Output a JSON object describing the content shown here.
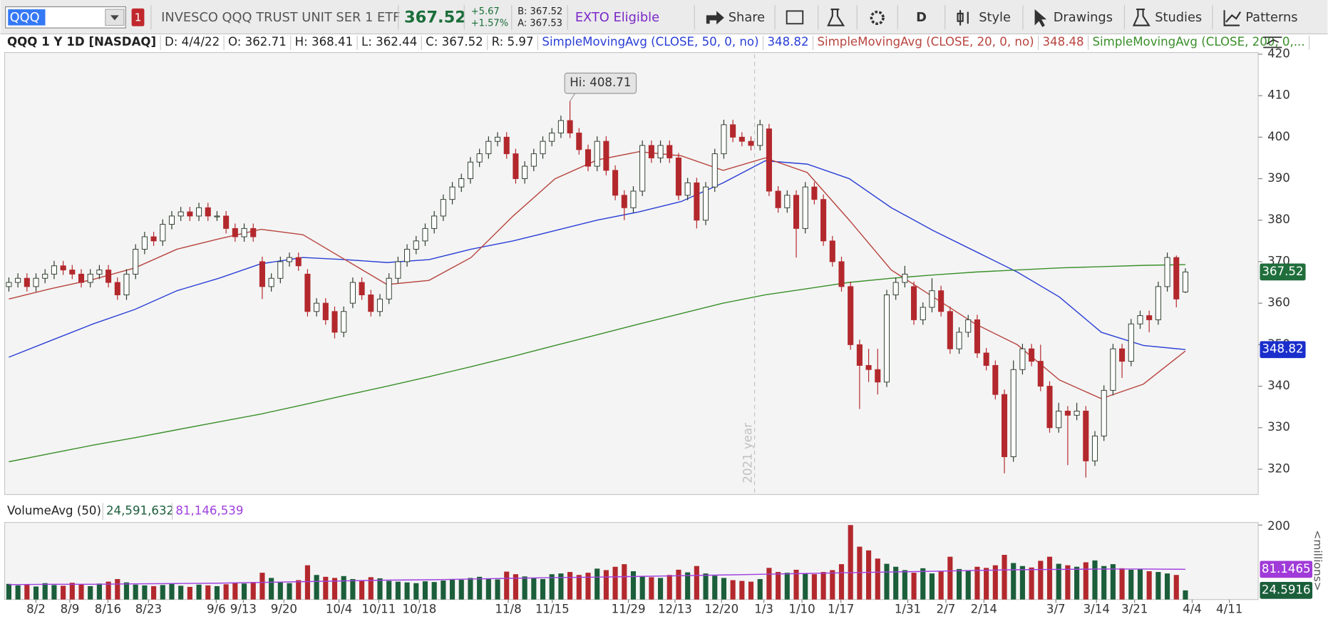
{
  "toolbar": {
    "symbol": "QQQ",
    "alert_count": "1",
    "description": "INVESCO QQQ TRUST UNIT SER 1 ETF",
    "last": "367.52",
    "change": "+5.67",
    "change_pct": "+1.57%",
    "bid": "B: 367.52",
    "ask": "A: 367.53",
    "badge": "EXTO Eligible",
    "buttons": [
      "Share",
      "D",
      "Style",
      "Drawings",
      "Studies",
      "Patterns"
    ]
  },
  "info_bar": {
    "symbol": "QQQ 1 Y 1D [NASDAQ]",
    "date": "D: 4/4/22",
    "open": "O: 362.71",
    "high": "H: 368.41",
    "low": "L: 362.44",
    "close": "C: 367.52",
    "range": "R: 5.97",
    "studies": [
      {
        "name": "SimpleMovingAvg (CLOSE, 50, 0, no)",
        "value": "348.82",
        "color": "#2a3fd6"
      },
      {
        "name": "SimpleMovingAvg (CLOSE, 20, 0, no)",
        "value": "348.48",
        "color": "#b8453f"
      },
      {
        "name": "SimpleMovingAvg (CLOSE, 200, 0,...",
        "color": "#3a8f2a"
      }
    ]
  },
  "price_chart": {
    "ylim": [
      313.9,
      420.4
    ],
    "yticks": [
      320,
      330,
      340,
      350,
      360,
      370,
      380,
      390,
      400,
      410,
      420
    ],
    "up_color": "#ffffff",
    "down_color": "#b3282d",
    "candles": [
      [
        364,
        366.2,
        362.8,
        365
      ],
      [
        365,
        367.2,
        363.8,
        366
      ],
      [
        366,
        367.2,
        362.8,
        364
      ],
      [
        364,
        367.2,
        362.8,
        366
      ],
      [
        366,
        368.2,
        364.8,
        367
      ],
      [
        367,
        370.2,
        365.8,
        369
      ],
      [
        369,
        370.2,
        366.8,
        368
      ],
      [
        368,
        369.2,
        365.8,
        367
      ],
      [
        367,
        368.2,
        363.8,
        365
      ],
      [
        365,
        368.2,
        363.8,
        367
      ],
      [
        367,
        369.2,
        365.8,
        368
      ],
      [
        368,
        369.2,
        363.8,
        365
      ],
      [
        365,
        366.2,
        360.8,
        362
      ],
      [
        362,
        368.2,
        360.8,
        367
      ],
      [
        367,
        374.2,
        365.8,
        373
      ],
      [
        373,
        377.2,
        371.8,
        376
      ],
      [
        376,
        377.2,
        373.8,
        375
      ],
      [
        375,
        380.2,
        373.8,
        379
      ],
      [
        379,
        382.2,
        377.8,
        381
      ],
      [
        381,
        383.2,
        379.8,
        382
      ],
      [
        382,
        383.2,
        379.8,
        381
      ],
      [
        381,
        384.2,
        379.8,
        383
      ],
      [
        383,
        384.2,
        379.8,
        381
      ],
      [
        381,
        382.2,
        379.8,
        381
      ],
      [
        381,
        382.2,
        376.8,
        378
      ],
      [
        378,
        379.2,
        374.8,
        376
      ],
      [
        376,
        379.2,
        374.8,
        378
      ],
      [
        378,
        379.2,
        374.8,
        376
      ],
      [
        370,
        371.2,
        361,
        364
      ],
      [
        364,
        367.2,
        362.8,
        366
      ],
      [
        366,
        371.2,
        364.8,
        370
      ],
      [
        370,
        372.2,
        368.8,
        371
      ],
      [
        371,
        372.2,
        367.8,
        369
      ],
      [
        367,
        368.2,
        356.8,
        358
      ],
      [
        358,
        361.2,
        356.8,
        360
      ],
      [
        360,
        361.2,
        354.8,
        356
      ],
      [
        358,
        359.2,
        351.5,
        353
      ],
      [
        353,
        359.2,
        351.8,
        358
      ],
      [
        360,
        366.2,
        358.8,
        365
      ],
      [
        365,
        366.2,
        360.8,
        362
      ],
      [
        362,
        363.2,
        356.8,
        358
      ],
      [
        358,
        362.2,
        356.8,
        361
      ],
      [
        361,
        367.2,
        359.8,
        366
      ],
      [
        366,
        371.2,
        364.8,
        370
      ],
      [
        370,
        374.2,
        368.8,
        373
      ],
      [
        373,
        376.2,
        371.8,
        375
      ],
      [
        375,
        379.2,
        373.8,
        378
      ],
      [
        378,
        382.2,
        376.8,
        381
      ],
      [
        381,
        386.2,
        379.8,
        385
      ],
      [
        385,
        389.2,
        383.8,
        388
      ],
      [
        388,
        391.2,
        386.8,
        390
      ],
      [
        390,
        395.2,
        388.8,
        394
      ],
      [
        394,
        397.2,
        392.8,
        396
      ],
      [
        396,
        400.2,
        394.8,
        399
      ],
      [
        399,
        401.2,
        397.8,
        400
      ],
      [
        400,
        401.2,
        394.8,
        396
      ],
      [
        396,
        397.2,
        388.8,
        390
      ],
      [
        390,
        394.2,
        388.8,
        393
      ],
      [
        393,
        397.2,
        391.8,
        396
      ],
      [
        396,
        400.2,
        394.8,
        399
      ],
      [
        399,
        402.2,
        397.8,
        401
      ],
      [
        401,
        405.2,
        399.8,
        404
      ],
      [
        404,
        408.71,
        399.8,
        401
      ],
      [
        401,
        402.2,
        395.8,
        397
      ],
      [
        397,
        398.2,
        391.8,
        393
      ],
      [
        393,
        400.2,
        391.8,
        399
      ],
      [
        399,
        400.2,
        390.8,
        392
      ],
      [
        392,
        393.2,
        384.8,
        386
      ],
      [
        386,
        387.2,
        380,
        383
      ],
      [
        383,
        388.2,
        381.8,
        387
      ],
      [
        387,
        399.2,
        385.8,
        398
      ],
      [
        398,
        399.2,
        393.8,
        395
      ],
      [
        395,
        399.2,
        393.8,
        398
      ],
      [
        398,
        399.2,
        393.8,
        395
      ],
      [
        395,
        396.2,
        384.8,
        386
      ],
      [
        386,
        390.2,
        384.8,
        389
      ],
      [
        389,
        390.2,
        378,
        380
      ],
      [
        380,
        389.2,
        378.8,
        388
      ],
      [
        388,
        397.2,
        386.8,
        396
      ],
      [
        396,
        404.2,
        394.8,
        403
      ],
      [
        403,
        404.2,
        398.8,
        400
      ],
      [
        400,
        401.2,
        397.8,
        399
      ],
      [
        399,
        400.2,
        396.8,
        398
      ],
      [
        398,
        404.2,
        396.8,
        403
      ],
      [
        402,
        403.2,
        385.8,
        387
      ],
      [
        387,
        388.2,
        381.8,
        383
      ],
      [
        383,
        387.2,
        381.8,
        386
      ],
      [
        386,
        387.2,
        371,
        378
      ],
      [
        378,
        389.2,
        376.8,
        388
      ],
      [
        388,
        389.2,
        383.8,
        385
      ],
      [
        385,
        386.2,
        373.8,
        375
      ],
      [
        375,
        376.2,
        368.8,
        370
      ],
      [
        370,
        371.2,
        362.8,
        364
      ],
      [
        364,
        365.2,
        348.8,
        350
      ],
      [
        350,
        351.2,
        334.5,
        345
      ],
      [
        345,
        349,
        341,
        344
      ],
      [
        344,
        349,
        338,
        341
      ],
      [
        341,
        363.2,
        339.8,
        362
      ],
      [
        362,
        366.2,
        360.8,
        365
      ],
      [
        365,
        369,
        363.8,
        367
      ],
      [
        364,
        365.2,
        354.8,
        356
      ],
      [
        356,
        360.2,
        354.8,
        359
      ],
      [
        359,
        366,
        357.8,
        363
      ],
      [
        363,
        364.2,
        356.8,
        358
      ],
      [
        358,
        359.2,
        347.8,
        349
      ],
      [
        349,
        354.2,
        347.8,
        353
      ],
      [
        353,
        357.2,
        351.8,
        356
      ],
      [
        356,
        357.2,
        346.8,
        348
      ],
      [
        348,
        349.2,
        343.8,
        345
      ],
      [
        345,
        346.2,
        336.8,
        338
      ],
      [
        338,
        339.2,
        319,
        323
      ],
      [
        323,
        346.2,
        321.8,
        344
      ],
      [
        344,
        350.2,
        342.8,
        349
      ],
      [
        349,
        350.2,
        344.8,
        346
      ],
      [
        346,
        350,
        338.8,
        340
      ],
      [
        340,
        341.2,
        328.8,
        330
      ],
      [
        330,
        336,
        328.8,
        334
      ],
      [
        334,
        335.2,
        321,
        333
      ],
      [
        333,
        336,
        331.8,
        334
      ],
      [
        334,
        335.2,
        318,
        322
      ],
      [
        322,
        329.2,
        320.8,
        328
      ],
      [
        328,
        340.2,
        326.8,
        339
      ],
      [
        339,
        350.2,
        337.8,
        349
      ],
      [
        349,
        350.2,
        342,
        346
      ],
      [
        346,
        356.2,
        344.8,
        355
      ],
      [
        355,
        358.2,
        353.8,
        357
      ],
      [
        357,
        358.2,
        353,
        356
      ],
      [
        356,
        365.2,
        354.8,
        364
      ],
      [
        364,
        372.2,
        362.8,
        371
      ],
      [
        371,
        371.5,
        359,
        361
      ],
      [
        362.71,
        368.41,
        362.44,
        367.52
      ]
    ],
    "averages": [
      {
        "values": [
          347,
          351,
          355,
          358.5,
          363,
          366,
          369.5,
          371,
          370.5,
          369.8,
          370.5,
          373,
          375,
          377.5,
          380,
          382,
          384.5,
          389,
          394.3,
          393.5,
          390,
          383,
          377.5,
          372.5,
          367.5,
          361.5,
          353,
          349.8,
          348.82
        ]
      },
      {
        "values": [
          361,
          363.5,
          365.7,
          368.5,
          373,
          375.5,
          377.8,
          376.5,
          370.5,
          364.5,
          365.5,
          371,
          381,
          390,
          394.5,
          396.5,
          395.5,
          392,
          395,
          391.5,
          380,
          368,
          361.5,
          355,
          350,
          341.5,
          337,
          340.5,
          348.48
        ]
      },
      {
        "values": [
          321.8,
          323.8,
          325.8,
          327.6,
          329.5,
          331.4,
          333.3,
          335.5,
          337.8,
          340,
          342.3,
          344.7,
          347.2,
          349.8,
          352.4,
          355,
          357.5,
          360,
          362,
          363.5,
          365,
          366,
          366.8,
          367.5,
          368,
          368.5,
          368.8,
          369.1,
          369.3
        ]
      }
    ],
    "badges": [
      {
        "value": 367.52,
        "label": "367.52",
        "color": "#1f6e3b"
      },
      {
        "value": 348.82,
        "label": "348.82",
        "color": "#1a2ecc"
      }
    ],
    "high_callout": "Hi: 408.71",
    "year_label": "2021 year"
  },
  "volume_chart": {
    "study": "VolumeAvg (50)",
    "volume": "24,591,632",
    "average": "81,146,539",
    "average_color": "#a040e0",
    "ylim": [
      0,
      207
    ],
    "yticks": [
      200
    ],
    "unit_label": "<millions>",
    "up_color": "#1b5e3a",
    "down_color": "#b3282d",
    "values": [
      42,
      38,
      40,
      35,
      44,
      39,
      37,
      45,
      41,
      36,
      43,
      48,
      55,
      46,
      40,
      38,
      36,
      39,
      42,
      37,
      34,
      40,
      38,
      36,
      41,
      45,
      43,
      47,
      72,
      58,
      48,
      44,
      52,
      92,
      66,
      61,
      58,
      63,
      55,
      52,
      60,
      57,
      50,
      48,
      46,
      44,
      49,
      47,
      51,
      55,
      53,
      58,
      61,
      56,
      54,
      75,
      68,
      62,
      57,
      55,
      68,
      70,
      74,
      66,
      72,
      83,
      79,
      88,
      95,
      76,
      62,
      60,
      58,
      66,
      80,
      73,
      90,
      70,
      64,
      58,
      52,
      50,
      48,
      55,
      85,
      74,
      72,
      80,
      70,
      68,
      74,
      79,
      95,
      200,
      142,
      132,
      110,
      96,
      88,
      79,
      72,
      84,
      70,
      75,
      115,
      82,
      79,
      88,
      85,
      92,
      120,
      98,
      90,
      86,
      104,
      115,
      96,
      92,
      88,
      100,
      105,
      90,
      95,
      84,
      80,
      82,
      76,
      74,
      70,
      66,
      24.5916
    ],
    "average_values": [
      40,
      41,
      41,
      42,
      43,
      44,
      46,
      48,
      50,
      52,
      53,
      55,
      57,
      59,
      60,
      62,
      64,
      66,
      68,
      70,
      72,
      74,
      76,
      78,
      80,
      81,
      82,
      82,
      81.1465
    ],
    "badges": [
      {
        "value": 81.1465,
        "label": "81.1465",
        "color": "#a03ad8"
      },
      {
        "value": 24.5916,
        "label": "24.5916",
        "color": "#1b5e3a"
      }
    ]
  },
  "x_axis": {
    "labels": [
      "8/2",
      "8/9",
      "8/16",
      "8/23",
      "9/6",
      "9/13",
      "9/20",
      "10/4",
      "10/11",
      "10/18",
      "11/8",
      "11/15",
      "11/29",
      "12/13",
      "12/20",
      "1/3",
      "1/10",
      "1/17",
      "1/31",
      "2/7",
      "2/14",
      "3/7",
      "3/14",
      "3/21",
      "4/4",
      "4/11"
    ]
  }
}
